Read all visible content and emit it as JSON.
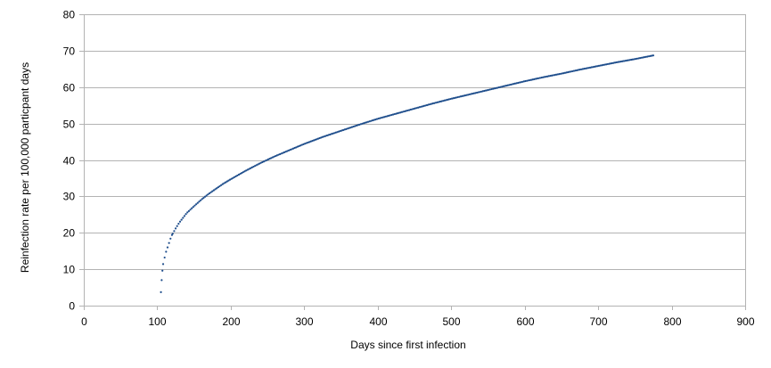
{
  "chart_data": {
    "type": "scatter",
    "title": "",
    "xlabel": "Days since first infection",
    "ylabel": "Reinfection rate per 100,000 particpant days",
    "xlim": [
      0,
      900
    ],
    "ylim": [
      0,
      80
    ],
    "xticks": [
      0,
      100,
      200,
      300,
      400,
      500,
      600,
      700,
      800,
      900
    ],
    "yticks": [
      0,
      10,
      20,
      30,
      40,
      50,
      60,
      70,
      80
    ],
    "grid": "horizontal",
    "legend": "none",
    "marker_color": "#1F4E8C",
    "series": [
      {
        "points": [
          [
            105,
            3.7
          ],
          [
            106,
            7.0
          ],
          [
            107,
            9.6
          ],
          [
            108,
            11.4
          ],
          [
            110,
            13.2
          ],
          [
            112,
            14.8
          ],
          [
            114,
            16.0
          ],
          [
            116,
            17.2
          ],
          [
            118,
            18.4
          ],
          [
            120,
            19.4
          ],
          [
            125,
            21.2
          ],
          [
            130,
            22.8
          ],
          [
            135,
            24.1
          ],
          [
            140,
            25.4
          ],
          [
            150,
            27.3
          ],
          [
            160,
            29.1
          ],
          [
            170,
            30.7
          ],
          [
            180,
            32.1
          ],
          [
            190,
            33.5
          ],
          [
            200,
            34.7
          ],
          [
            220,
            37.0
          ],
          [
            240,
            39.1
          ],
          [
            260,
            41.0
          ],
          [
            280,
            42.7
          ],
          [
            300,
            44.4
          ],
          [
            325,
            46.3
          ],
          [
            350,
            48.0
          ],
          [
            375,
            49.7
          ],
          [
            400,
            51.3
          ],
          [
            425,
            52.7
          ],
          [
            450,
            54.1
          ],
          [
            475,
            55.5
          ],
          [
            500,
            56.8
          ],
          [
            525,
            58.0
          ],
          [
            550,
            59.2
          ],
          [
            575,
            60.4
          ],
          [
            600,
            61.6
          ],
          [
            625,
            62.7
          ],
          [
            650,
            63.7
          ],
          [
            675,
            64.8
          ],
          [
            700,
            65.8
          ],
          [
            725,
            66.8
          ],
          [
            750,
            67.7
          ],
          [
            775,
            68.7
          ]
        ]
      }
    ]
  }
}
